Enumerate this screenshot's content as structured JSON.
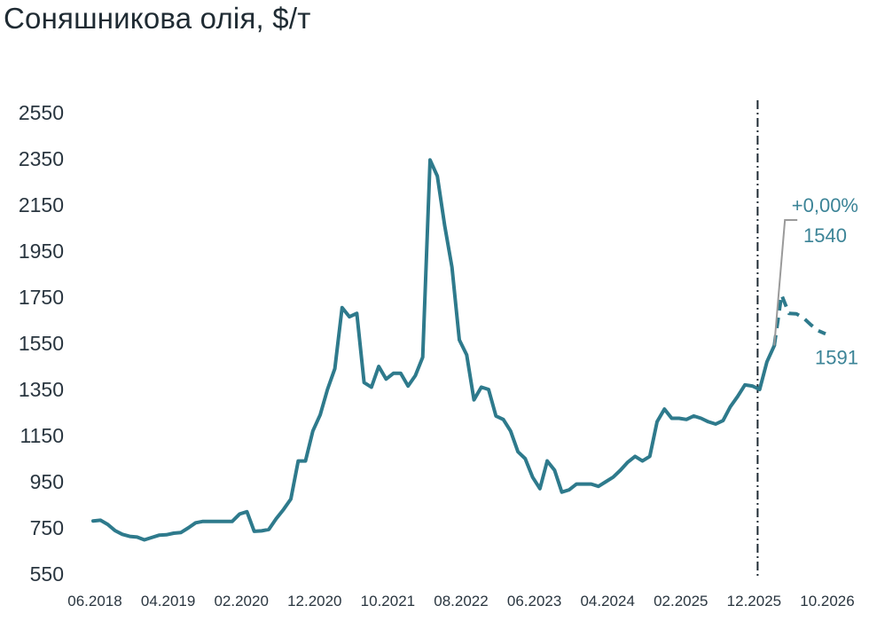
{
  "chart_data": {
    "type": "line",
    "title": "Соняшникова олія, $/т",
    "xlabel": "",
    "ylabel": "",
    "ylim": [
      550,
      2550
    ],
    "y_ticks": [
      "2550",
      "2350",
      "2150",
      "1950",
      "1750",
      "1550",
      "1350",
      "1150",
      "950",
      "750",
      "550"
    ],
    "x_ticks": [
      "06.2018",
      "04.2019",
      "02.2020",
      "12.2020",
      "10.2021",
      "08.2022",
      "06.2023",
      "04.2024",
      "02.2025",
      "12.2025",
      "10.2026"
    ],
    "grid": false,
    "legend": "none",
    "forecast_divider_month": "12.2025",
    "series": [
      {
        "style": "solid",
        "color": "#2e7a8c",
        "points": [
          [
            "06.2018",
            780
          ],
          [
            "07.2018",
            783
          ],
          [
            "08.2018",
            765
          ],
          [
            "09.2018",
            738
          ],
          [
            "10.2018",
            722
          ],
          [
            "11.2018",
            713
          ],
          [
            "12.2018",
            710
          ],
          [
            "01.2019",
            698
          ],
          [
            "02.2019",
            708
          ],
          [
            "03.2019",
            718
          ],
          [
            "04.2019",
            720
          ],
          [
            "05.2019",
            727
          ],
          [
            "06.2019",
            730
          ],
          [
            "07.2019",
            750
          ],
          [
            "08.2019",
            772
          ],
          [
            "09.2019",
            778
          ],
          [
            "10.2019",
            778
          ],
          [
            "11.2019",
            778
          ],
          [
            "12.2019",
            778
          ],
          [
            "01.2020",
            778
          ],
          [
            "02.2020",
            810
          ],
          [
            "03.2020",
            820
          ],
          [
            "04.2020",
            735
          ],
          [
            "05.2020",
            737
          ],
          [
            "06.2020",
            743
          ],
          [
            "07.2020",
            790
          ],
          [
            "08.2020",
            830
          ],
          [
            "09.2020",
            875
          ],
          [
            "10.2020",
            1040
          ],
          [
            "11.2020",
            1040
          ],
          [
            "12.2020",
            1170
          ],
          [
            "01.2021",
            1240
          ],
          [
            "02.2021",
            1350
          ],
          [
            "03.2021",
            1440
          ],
          [
            "04.2021",
            1705
          ],
          [
            "05.2021",
            1665
          ],
          [
            "06.2021",
            1680
          ],
          [
            "07.2021",
            1380
          ],
          [
            "08.2021",
            1360
          ],
          [
            "09.2021",
            1450
          ],
          [
            "10.2021",
            1395
          ],
          [
            "11.2021",
            1420
          ],
          [
            "12.2021",
            1420
          ],
          [
            "01.2022",
            1365
          ],
          [
            "02.2022",
            1410
          ],
          [
            "03.2022",
            1490
          ],
          [
            "04.2022",
            2345
          ],
          [
            "05.2022",
            2275
          ],
          [
            "06.2022",
            2060
          ],
          [
            "07.2022",
            1880
          ],
          [
            "08.2022",
            1565
          ],
          [
            "09.2022",
            1500
          ],
          [
            "10.2022",
            1305
          ],
          [
            "11.2022",
            1360
          ],
          [
            "12.2022",
            1350
          ],
          [
            "01.2023",
            1235
          ],
          [
            "02.2023",
            1220
          ],
          [
            "03.2023",
            1170
          ],
          [
            "04.2023",
            1080
          ],
          [
            "05.2023",
            1050
          ],
          [
            "06.2023",
            970
          ],
          [
            "07.2023",
            920
          ],
          [
            "08.2023",
            1040
          ],
          [
            "09.2023",
            1000
          ],
          [
            "10.2023",
            905
          ],
          [
            "11.2023",
            915
          ],
          [
            "12.2023",
            940
          ],
          [
            "01.2024",
            940
          ],
          [
            "02.2024",
            940
          ],
          [
            "03.2024",
            930
          ],
          [
            "04.2024",
            950
          ],
          [
            "05.2024",
            970
          ],
          [
            "06.2024",
            1000
          ],
          [
            "07.2024",
            1035
          ],
          [
            "08.2024",
            1060
          ],
          [
            "09.2024",
            1040
          ],
          [
            "10.2024",
            1060
          ],
          [
            "11.2024",
            1210
          ],
          [
            "12.2024",
            1265
          ],
          [
            "01.2025",
            1225
          ],
          [
            "02.2025",
            1225
          ],
          [
            "03.2025",
            1220
          ],
          [
            "04.2025",
            1235
          ],
          [
            "05.2025",
            1225
          ],
          [
            "06.2025",
            1210
          ],
          [
            "07.2025",
            1200
          ],
          [
            "08.2025",
            1215
          ],
          [
            "09.2025",
            1275
          ],
          [
            "10.2025",
            1320
          ],
          [
            "11.2025",
            1370
          ],
          [
            "12.2025",
            1365
          ],
          [
            "01.2026",
            1350
          ],
          [
            "02.2026",
            1470
          ],
          [
            "03.2026",
            1540
          ]
        ]
      },
      {
        "style": "dashed",
        "color": "#2e7a8c",
        "points": [
          [
            "03.2026",
            1540
          ],
          [
            "04.2026",
            1760
          ],
          [
            "05.2026",
            1680
          ],
          [
            "06.2026",
            1678
          ],
          [
            "07.2026",
            1660
          ],
          [
            "08.2026",
            1630
          ],
          [
            "09.2026",
            1605
          ],
          [
            "10.2026",
            1591
          ]
        ]
      }
    ],
    "annotations": [
      {
        "text": "+0,00%",
        "color": "#3c8497"
      },
      {
        "text": "1540",
        "color": "#3c8497"
      },
      {
        "text": "1591",
        "color": "#3c8497"
      }
    ]
  }
}
